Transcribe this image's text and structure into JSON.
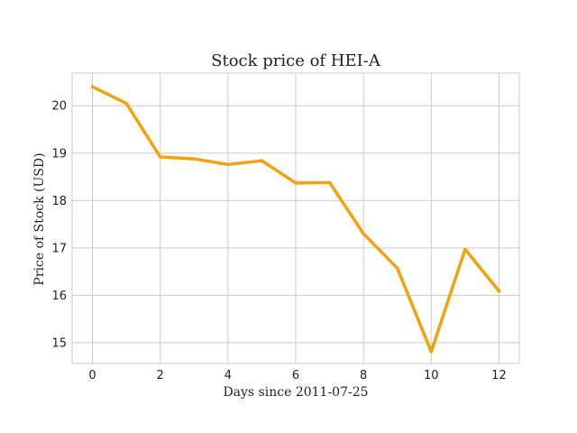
{
  "chart_data": {
    "type": "line",
    "title": "Stock price of HEI-A",
    "xlabel": "Days since 2011-07-25",
    "ylabel": "Price of Stock (USD)",
    "x": [
      0,
      1,
      2,
      3,
      4,
      5,
      6,
      7,
      8,
      9,
      10,
      11,
      12
    ],
    "series": [
      {
        "values": [
          20.4,
          20.05,
          18.92,
          18.88,
          18.76,
          18.84,
          18.37,
          18.38,
          17.3,
          16.57,
          14.81,
          16.97,
          16.09
        ]
      }
    ],
    "xticks": [
      0,
      2,
      4,
      6,
      8,
      10,
      12
    ],
    "yticks": [
      15,
      16,
      17,
      18,
      19,
      20
    ],
    "xlim": [
      -0.6,
      12.6
    ],
    "ylim": [
      14.56,
      20.69
    ],
    "grid": true,
    "line_color": "#f4a20c"
  }
}
